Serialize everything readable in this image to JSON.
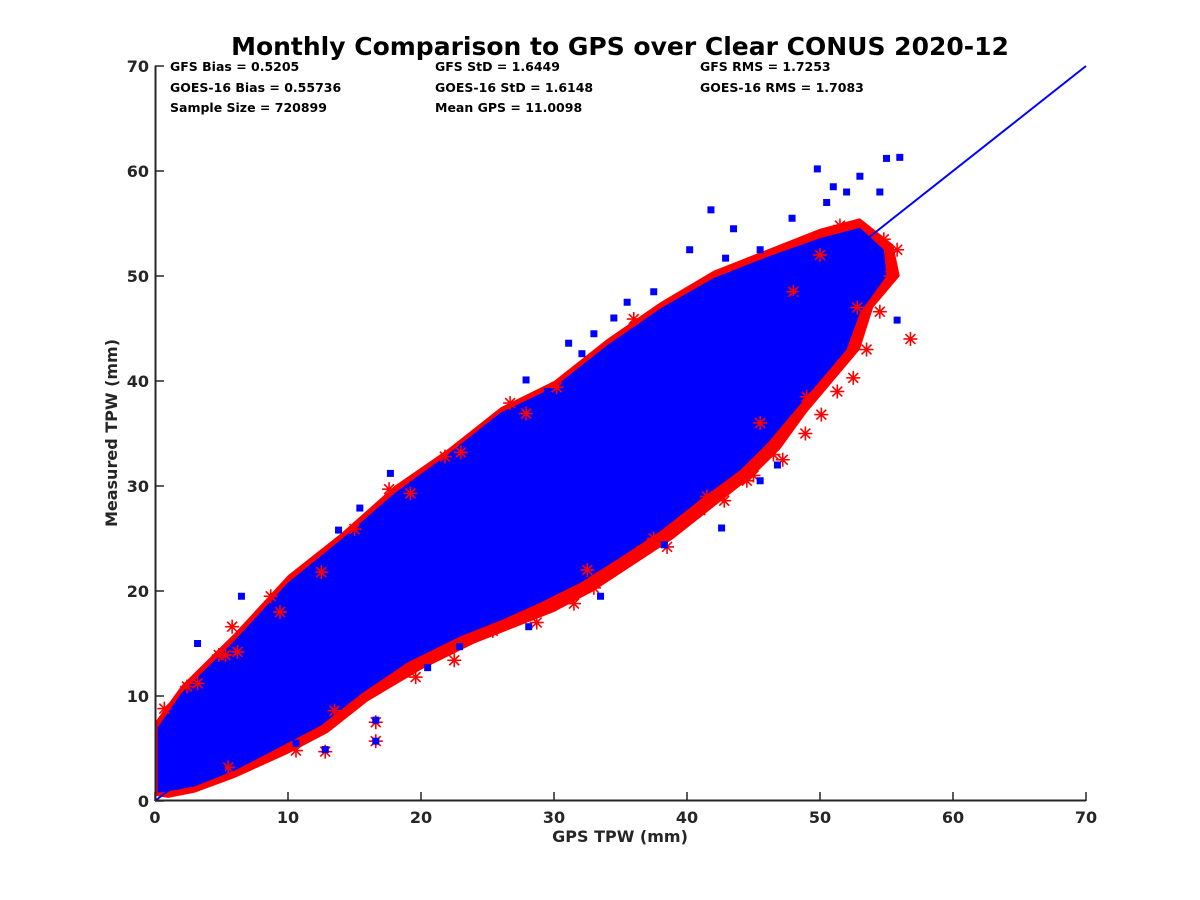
{
  "chart_data": {
    "type": "scatter",
    "title": "Monthly Comparison to GPS over Clear CONUS 2020-12",
    "xlabel": "GPS TPW (mm)",
    "ylabel": "Measured TPW (mm)",
    "xlim": [
      0,
      70
    ],
    "ylim": [
      0,
      70
    ],
    "xticks": [
      "0",
      "10",
      "20",
      "30",
      "40",
      "50",
      "60",
      "70"
    ],
    "yticks": [
      "0",
      "10",
      "20",
      "30",
      "40",
      "50",
      "60",
      "70"
    ],
    "stats": {
      "gfs_bias": "GFS Bias = 0.5205",
      "goes_bias": "GOES-16 Bias = 0.55736",
      "sample_size": "Sample Size = 720899",
      "gfs_std": "GFS StD = 1.6449",
      "goes_std": "GOES-16 StD = 1.6148",
      "mean_gps": "Mean GPS = 11.0098",
      "gfs_rms": "GFS RMS = 1.7253",
      "goes_rms": "GOES-16 RMS = 1.7083"
    },
    "series": [
      {
        "name": "GFS",
        "marker": "asterisk",
        "color": "#ff0000",
        "outlier_points": [
          [
            0.7,
            8.8
          ],
          [
            2.4,
            10.9
          ],
          [
            3.2,
            11.2
          ],
          [
            4.8,
            13.9
          ],
          [
            5.3,
            13.9
          ],
          [
            5.8,
            16.6
          ],
          [
            6.2,
            14.2
          ],
          [
            8.7,
            19.5
          ],
          [
            9.4,
            18.0
          ],
          [
            12.5,
            21.8
          ],
          [
            15.0,
            25.9
          ],
          [
            17.6,
            29.7
          ],
          [
            19.2,
            29.3
          ],
          [
            21.8,
            32.8
          ],
          [
            23.0,
            33.2
          ],
          [
            26.7,
            37.9
          ],
          [
            27.9,
            36.9
          ],
          [
            30.2,
            39.4
          ],
          [
            36.0,
            45.9
          ],
          [
            5.5,
            3.2
          ],
          [
            10.6,
            4.8
          ],
          [
            12.8,
            4.7
          ],
          [
            16.6,
            5.7
          ],
          [
            16.6,
            7.5
          ],
          [
            13.5,
            8.6
          ],
          [
            19.6,
            11.8
          ],
          [
            22.5,
            13.4
          ],
          [
            25.4,
            16.2
          ],
          [
            28.7,
            17.0
          ],
          [
            31.5,
            18.8
          ],
          [
            33.0,
            20.3
          ],
          [
            36.6,
            23.8
          ],
          [
            38.5,
            24.2
          ],
          [
            41.0,
            27.7
          ],
          [
            42.8,
            28.6
          ],
          [
            45.0,
            31.0
          ],
          [
            47.2,
            32.5
          ],
          [
            48.9,
            35.0
          ],
          [
            50.1,
            36.8
          ],
          [
            51.3,
            39.0
          ],
          [
            52.5,
            40.3
          ],
          [
            53.5,
            43.0
          ],
          [
            54.5,
            46.6
          ],
          [
            55.3,
            50.0
          ],
          [
            55.8,
            52.5
          ],
          [
            56.8,
            44.0
          ],
          [
            54.8,
            53.5
          ],
          [
            51.5,
            54.8
          ],
          [
            50.0,
            52.0
          ],
          [
            49.0,
            38.5
          ],
          [
            37.5,
            25.0
          ],
          [
            41.5,
            29.0
          ],
          [
            44.5,
            30.5
          ],
          [
            46.5,
            33.0
          ],
          [
            32.5,
            22.0
          ],
          [
            48.0,
            48.5
          ],
          [
            52.8,
            47.0
          ],
          [
            45.5,
            36.0
          ]
        ]
      },
      {
        "name": "GOES-16",
        "marker": "square",
        "color": "#0000ff",
        "outlier_points": [
          [
            3.2,
            15.0
          ],
          [
            6.5,
            19.5
          ],
          [
            10.1,
            19.8
          ],
          [
            13.8,
            25.8
          ],
          [
            15.4,
            27.9
          ],
          [
            16.3,
            26.6
          ],
          [
            17.7,
            31.2
          ],
          [
            22.0,
            30.8
          ],
          [
            25.0,
            35.5
          ],
          [
            27.9,
            40.1
          ],
          [
            31.1,
            43.6
          ],
          [
            32.1,
            42.6
          ],
          [
            34.5,
            46.0
          ],
          [
            35.5,
            47.5
          ],
          [
            37.5,
            48.5
          ],
          [
            40.2,
            52.5
          ],
          [
            42.9,
            51.7
          ],
          [
            45.5,
            52.5
          ],
          [
            47.9,
            55.5
          ],
          [
            51.0,
            58.5
          ],
          [
            55.0,
            61.2
          ],
          [
            56.0,
            61.3
          ],
          [
            53.0,
            59.5
          ],
          [
            49.8,
            60.2
          ],
          [
            55.8,
            45.8
          ],
          [
            45.5,
            30.5
          ],
          [
            46.8,
            32.0
          ],
          [
            42.6,
            26.0
          ],
          [
            38.3,
            24.4
          ],
          [
            33.5,
            19.5
          ],
          [
            28.1,
            16.6
          ],
          [
            22.9,
            14.7
          ],
          [
            20.5,
            12.7
          ],
          [
            16.6,
            5.7
          ],
          [
            16.6,
            7.7
          ],
          [
            12.8,
            4.9
          ],
          [
            10.6,
            5.5
          ],
          [
            5.0,
            3.0
          ],
          [
            43.5,
            54.5
          ],
          [
            36.5,
            45.0
          ],
          [
            29.5,
            39.0
          ],
          [
            24.3,
            34.6
          ],
          [
            19.8,
            27.5
          ],
          [
            11.8,
            21.8
          ],
          [
            52.0,
            58.0
          ],
          [
            50.5,
            57.0
          ],
          [
            41.8,
            56.3
          ],
          [
            33.0,
            44.5
          ],
          [
            54.5,
            58.0
          ],
          [
            48.5,
            50.5
          ],
          [
            44.2,
            37.5
          ],
          [
            40.8,
            31.0
          ],
          [
            37.0,
            27.5
          ],
          [
            31.5,
            21.5
          ],
          [
            26.5,
            19.5
          ],
          [
            23.5,
            17.2
          ],
          [
            15.0,
            10.2
          ],
          [
            9.0,
            6.0
          ]
        ]
      }
    ],
    "reference_line": {
      "name": "1:1 line",
      "color": "#0000ff",
      "points": [
        [
          0,
          0
        ],
        [
          70,
          70
        ]
      ]
    }
  }
}
